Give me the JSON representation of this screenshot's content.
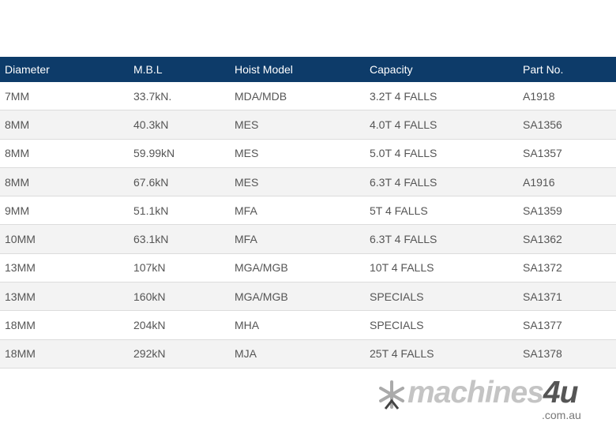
{
  "table": {
    "headers": [
      "Diameter",
      "M.B.L",
      "Hoist Model",
      "Capacity",
      "Part No."
    ],
    "rows": [
      [
        "7MM",
        "33.7kN.",
        "MDA/MDB",
        "3.2T 4 FALLS",
        "A1918"
      ],
      [
        "8MM",
        "40.3kN",
        "MES",
        "4.0T 4 FALLS",
        "SA1356"
      ],
      [
        "8MM",
        "59.99kN",
        "MES",
        "5.0T 4 FALLS",
        "SA1357"
      ],
      [
        "8MM",
        "67.6kN",
        "MES",
        "6.3T 4 FALLS",
        "A1916"
      ],
      [
        "9MM",
        "51.1kN",
        "MFA",
        "5T 4 FALLS",
        "SA1359"
      ],
      [
        "10MM",
        "63.1kN",
        "MFA",
        "6.3T 4 FALLS",
        "SA1362"
      ],
      [
        "13MM",
        "107kN",
        "MGA/MGB",
        "10T 4 FALLS",
        "SA1372"
      ],
      [
        "13MM",
        "160kN",
        "MGA/MGB",
        "SPECIALS",
        "SA1371"
      ],
      [
        "18MM",
        "204kN",
        "MHA",
        "SPECIALS",
        "SA1377"
      ],
      [
        "18MM",
        "292kN",
        "MJA",
        "25T  4 FALLS",
        "SA1378"
      ]
    ]
  },
  "logo": {
    "word": "machines",
    "accent": "4u",
    "domain": ".com.au"
  },
  "colors": {
    "header_bg": "#0d3b69",
    "row_alt": "#f3f3f3"
  }
}
